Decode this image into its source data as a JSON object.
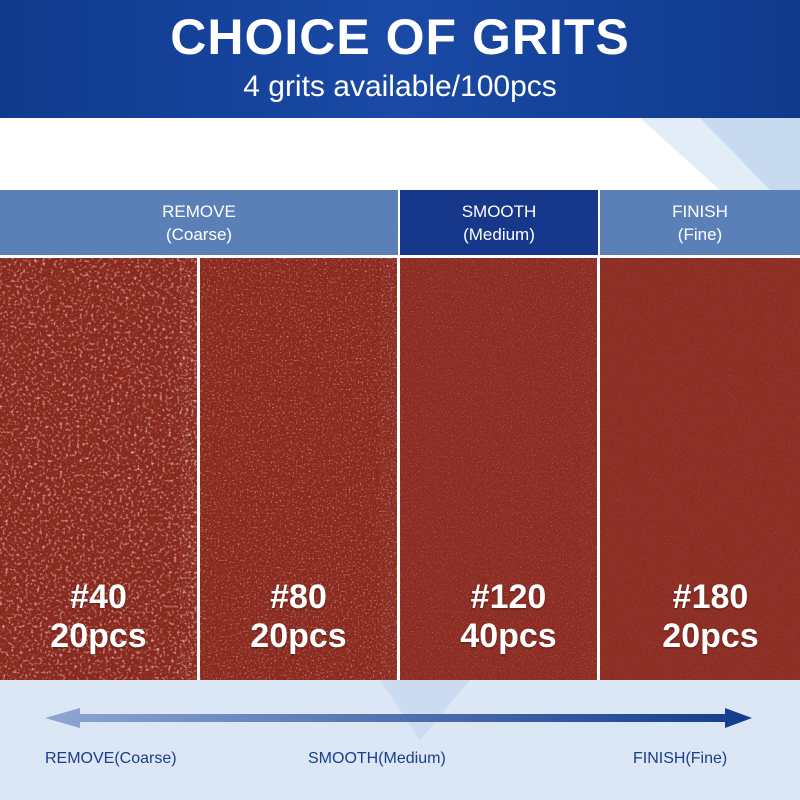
{
  "header": {
    "title": "CHOICE OF GRITS",
    "subtitle": "4 grits available/100pcs"
  },
  "sections": [
    {
      "label": "REMOVE",
      "sub": "(Coarse)"
    },
    {
      "label": "SMOOTH",
      "sub": "(Medium)"
    },
    {
      "label": "FINISH",
      "sub": "(Fine)"
    }
  ],
  "grits": [
    {
      "grit": "#40",
      "count": "20pcs"
    },
    {
      "grit": "#80",
      "count": "20pcs"
    },
    {
      "grit": "#120",
      "count": "40pcs"
    },
    {
      "grit": "#180",
      "count": "20pcs"
    }
  ],
  "scale": [
    "REMOVE(Coarse)",
    "SMOOTH(Medium)",
    "FINISH(Fine)"
  ]
}
